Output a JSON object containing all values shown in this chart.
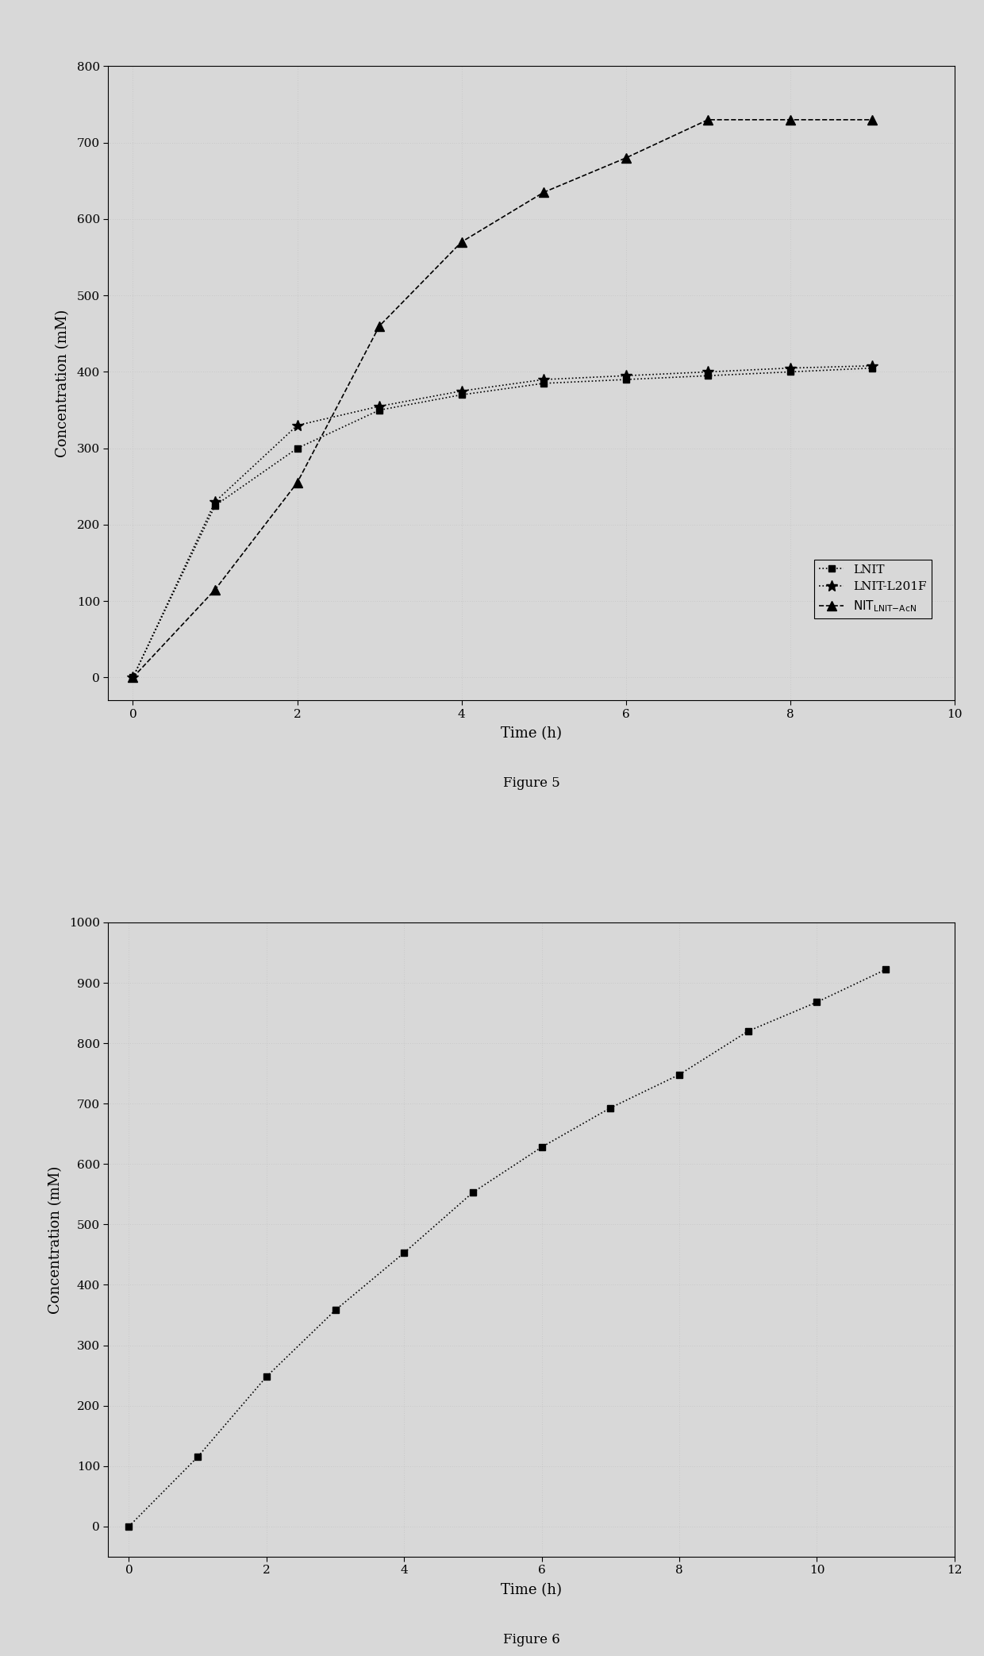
{
  "fig1": {
    "caption": "Figure 5",
    "xlabel": "Time (h)",
    "ylabel": "Concentration (mM)",
    "xlim": [
      -0.3,
      10
    ],
    "ylim": [
      -30,
      800
    ],
    "xticks": [
      0,
      2,
      4,
      6,
      8,
      10
    ],
    "yticks": [
      0,
      100,
      200,
      300,
      400,
      500,
      600,
      700,
      800
    ],
    "series": [
      {
        "label": "LNIT",
        "x": [
          0,
          1,
          2,
          3,
          4,
          5,
          6,
          7,
          8,
          9
        ],
        "y": [
          0,
          225,
          300,
          350,
          370,
          385,
          390,
          395,
          400,
          405
        ],
        "marker": "s",
        "linestyle": "dotted",
        "color": "#000000",
        "markersize": 6
      },
      {
        "label": "LNIT-L201F",
        "x": [
          0,
          1,
          2,
          3,
          4,
          5,
          6,
          7,
          8,
          9
        ],
        "y": [
          0,
          230,
          330,
          355,
          375,
          390,
          395,
          400,
          405,
          408
        ],
        "marker": "*",
        "linestyle": "dotted",
        "color": "#000000",
        "markersize": 10
      },
      {
        "label": "NIT_LNIT_AcN",
        "x": [
          0,
          1,
          2,
          3,
          4,
          5,
          6,
          7,
          8,
          9
        ],
        "y": [
          0,
          115,
          255,
          460,
          570,
          635,
          680,
          730,
          730,
          730
        ],
        "marker": "^",
        "linestyle": "dashed",
        "color": "#000000",
        "markersize": 8
      }
    ]
  },
  "fig2": {
    "caption": "Figure 6",
    "xlabel": "Time (h)",
    "ylabel": "Concentration (mM)",
    "xlim": [
      -0.3,
      12
    ],
    "ylim": [
      -50,
      1000
    ],
    "xticks": [
      0,
      2,
      4,
      6,
      8,
      10,
      12
    ],
    "yticks": [
      0,
      100,
      200,
      300,
      400,
      500,
      600,
      700,
      800,
      900,
      1000
    ],
    "series": [
      {
        "label": "",
        "x": [
          0,
          1,
          2,
          3,
          4,
          5,
          6,
          7,
          8,
          9,
          10,
          11
        ],
        "y": [
          0,
          115,
          248,
          358,
          453,
          553,
          628,
          693,
          748,
          820,
          868,
          922
        ],
        "marker": "s",
        "linestyle": "dotted",
        "color": "#000000",
        "markersize": 6
      }
    ]
  },
  "background_color": "#d8d8d8",
  "plot_bg_color": "#d8d8d8",
  "grid_color": "#bbbbbb",
  "grid_linewidth": 0.5,
  "line_linewidth": 1.2,
  "tick_labelsize": 11,
  "axis_labelsize": 13,
  "caption_fontsize": 12,
  "legend_fontsize": 11
}
